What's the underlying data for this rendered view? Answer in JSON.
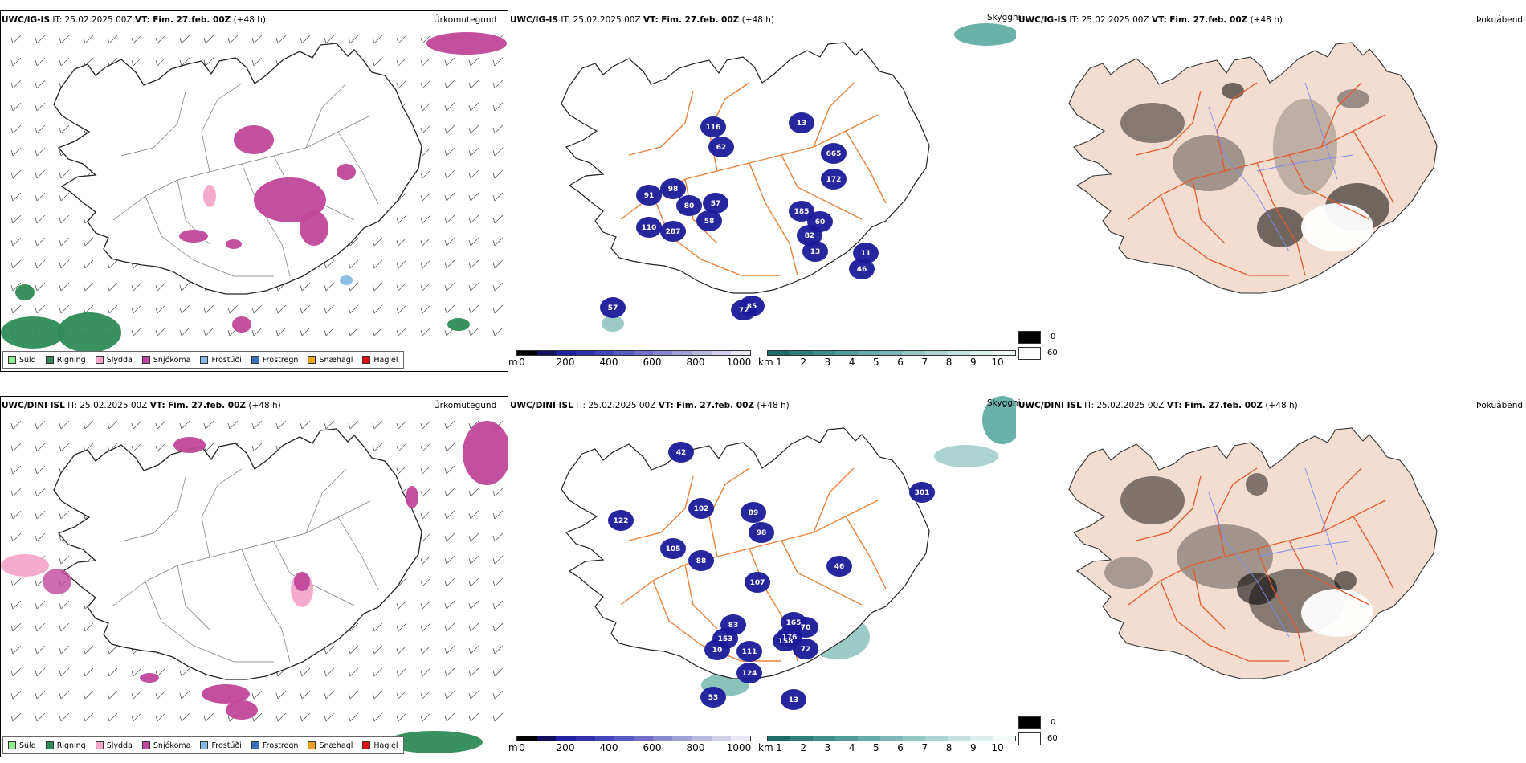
{
  "rows": [
    {
      "model": "UWC/IG-IS",
      "it_label": "IT:",
      "it": "25.02.2025 00Z",
      "vt_label": "VT:",
      "vt": "Fim. 27.feb. 00Z",
      "lead": "(+48 h)",
      "panel1_name": "Úrkomutegund",
      "panel2_name": "Skyggni",
      "panel3_name": "Þokuábendi",
      "visibility_labels": [
        "116",
        "62",
        "98",
        "91",
        "80",
        "57",
        "110",
        "287",
        "58",
        "185",
        "60",
        "82",
        "665",
        "172",
        "13",
        "11",
        "46",
        "85",
        "72",
        "57",
        "13"
      ]
    },
    {
      "model": "UWC/DINI ISL",
      "it_label": "IT:",
      "it": "25.02.2025 00Z",
      "vt_label": "VT:",
      "vt": "Fim. 27.feb. 00Z",
      "lead": "(+48 h)",
      "panel1_name": "Úrkomutegund",
      "panel2_name": "Skyggni",
      "panel3_name": "Þokuábendi",
      "visibility_labels": [
        "102",
        "105",
        "88",
        "89",
        "98",
        "122",
        "107",
        "83",
        "153",
        "165",
        "70",
        "176",
        "158",
        "72",
        "10",
        "111",
        "124",
        "13",
        "301",
        "46",
        "53",
        "42"
      ]
    }
  ],
  "precip_legend": [
    {
      "label": "Súld",
      "color": "#90ee90"
    },
    {
      "label": "Rigning",
      "color": "#2e8b57"
    },
    {
      "label": "Slydda",
      "color": "#f4a6c8"
    },
    {
      "label": "Snjókoma",
      "color": "#c0479a"
    },
    {
      "label": "Frostúði",
      "color": "#87b9e8"
    },
    {
      "label": "Frostregn",
      "color": "#3a70c0"
    },
    {
      "label": "Snæhagl",
      "color": "#f0a020"
    },
    {
      "label": "Haglél",
      "color": "#e01010"
    }
  ],
  "height_scale": {
    "unit": "m",
    "ticks": [
      "0",
      "200",
      "400",
      "600",
      "800",
      "1000"
    ],
    "colors": [
      "#000000",
      "#101060",
      "#2020a0",
      "#3030b0",
      "#4444bb",
      "#5a5ac0",
      "#7070c8",
      "#8888d0",
      "#a0a0d8",
      "#babae0",
      "#d0d0ea",
      "#e8e8f4"
    ]
  },
  "visibility_scale": {
    "unit": "km",
    "ticks": [
      "1",
      "2",
      "3",
      "4",
      "5",
      "6",
      "7",
      "8",
      "9",
      "10"
    ],
    "colors": [
      "#1f6b66",
      "#2f7d77",
      "#408e88",
      "#529d97",
      "#66aca6",
      "#7cbab5",
      "#93c8c3",
      "#aad5d1",
      "#c2e2df",
      "#dcefed",
      "#f4faf9"
    ]
  },
  "fog_key": {
    "dark_label": "0",
    "light_label": "60",
    "dark_color": "#000000",
    "light_color": "#ffffff"
  },
  "colors": {
    "snow": "#c0479a",
    "rain": "#2e8b57",
    "sleet": "#f4a6c8",
    "freezing_drizzle": "#87b9e8",
    "roads": "#e8823a",
    "low_vis": "#1a1a9a",
    "vis_teal": "#5aa89f",
    "fog_land": "#f3ddd0",
    "fog_roads": "#e05a30",
    "fog_rivers": "#7a8cf0"
  }
}
